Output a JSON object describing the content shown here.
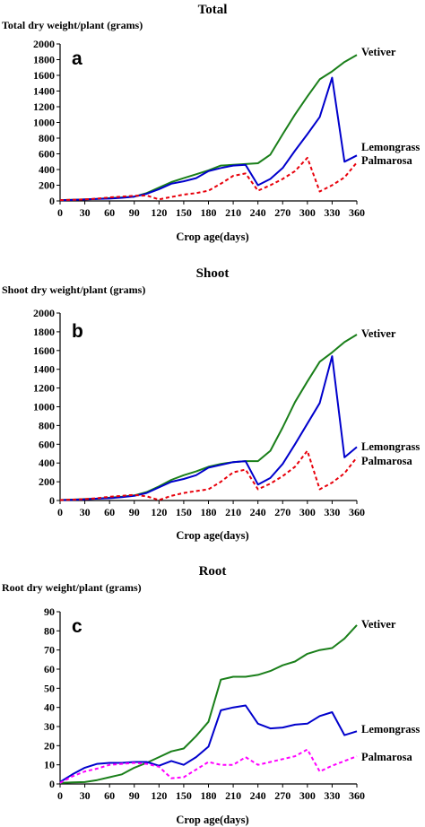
{
  "chart_data": [
    {
      "type": "line",
      "panel_letter": "a",
      "title": "Total",
      "ylabel": "Total dry weight/plant (grams)",
      "xlabel": "Crop age(days)",
      "xlim": [
        0,
        360
      ],
      "ylim": [
        0,
        2000
      ],
      "xticks": [
        0,
        30,
        60,
        90,
        120,
        150,
        180,
        210,
        240,
        270,
        300,
        330,
        360
      ],
      "yticks": [
        0,
        200,
        400,
        600,
        800,
        1000,
        1200,
        1400,
        1600,
        1800,
        2000
      ],
      "grid": false,
      "legend": "inline labels at right end of lines",
      "series": [
        {
          "name": "Vetiver",
          "color": "#1a7f1a",
          "dash": "solid",
          "x": [
            0,
            15,
            30,
            45,
            60,
            75,
            90,
            105,
            120,
            135,
            150,
            165,
            180,
            195,
            210,
            225,
            240,
            255,
            270,
            285,
            300,
            315,
            330,
            345,
            360
          ],
          "y": [
            10,
            15,
            20,
            25,
            35,
            45,
            55,
            100,
            170,
            240,
            290,
            340,
            390,
            450,
            460,
            470,
            480,
            590,
            850,
            1100,
            1330,
            1550,
            1650,
            1770,
            1860
          ]
        },
        {
          "name": "Lemongrass",
          "color": "#0000cc",
          "dash": "solid",
          "x": [
            0,
            15,
            30,
            45,
            60,
            75,
            90,
            105,
            120,
            135,
            150,
            165,
            180,
            195,
            210,
            225,
            240,
            255,
            270,
            285,
            300,
            315,
            330,
            345,
            360
          ],
          "y": [
            8,
            12,
            18,
            25,
            30,
            40,
            55,
            90,
            150,
            220,
            250,
            290,
            380,
            420,
            450,
            460,
            200,
            280,
            420,
            640,
            850,
            1070,
            1570,
            500,
            580
          ]
        },
        {
          "name": "Palmarosa",
          "color": "#e8000b",
          "dash": "dashed",
          "x": [
            0,
            15,
            30,
            45,
            60,
            75,
            90,
            105,
            120,
            135,
            150,
            165,
            180,
            195,
            210,
            225,
            240,
            255,
            270,
            285,
            300,
            315,
            330,
            345,
            360
          ],
          "y": [
            10,
            15,
            20,
            30,
            45,
            55,
            65,
            70,
            20,
            50,
            80,
            100,
            130,
            220,
            320,
            350,
            130,
            200,
            280,
            380,
            550,
            120,
            200,
            300,
            490
          ]
        }
      ]
    },
    {
      "type": "line",
      "panel_letter": "b",
      "title": "Shoot",
      "ylabel": "Shoot dry weight/plant (grams)",
      "xlabel": "Crop age(days)",
      "xlim": [
        0,
        360
      ],
      "ylim": [
        0,
        2000
      ],
      "xticks": [
        0,
        30,
        60,
        90,
        120,
        150,
        180,
        210,
        240,
        270,
        300,
        330,
        360
      ],
      "yticks": [
        0,
        200,
        400,
        600,
        800,
        1000,
        1200,
        1400,
        1600,
        1800,
        2000
      ],
      "grid": false,
      "legend": "inline labels at right end of lines",
      "series": [
        {
          "name": "Vetiver",
          "color": "#1a7f1a",
          "dash": "solid",
          "x": [
            0,
            15,
            30,
            45,
            60,
            75,
            90,
            105,
            120,
            135,
            150,
            165,
            180,
            195,
            210,
            225,
            240,
            255,
            270,
            285,
            300,
            315,
            330,
            345,
            360
          ],
          "y": [
            5,
            10,
            15,
            20,
            30,
            40,
            55,
            90,
            150,
            220,
            270,
            310,
            360,
            390,
            410,
            420,
            420,
            530,
            780,
            1050,
            1270,
            1480,
            1580,
            1690,
            1770
          ]
        },
        {
          "name": "Lemongrass",
          "color": "#0000cc",
          "dash": "solid",
          "x": [
            0,
            15,
            30,
            45,
            60,
            75,
            90,
            105,
            120,
            135,
            150,
            165,
            180,
            195,
            210,
            225,
            240,
            255,
            270,
            285,
            300,
            315,
            330,
            345,
            360
          ],
          "y": [
            5,
            8,
            12,
            20,
            25,
            35,
            50,
            80,
            140,
            200,
            230,
            270,
            350,
            380,
            410,
            420,
            170,
            240,
            390,
            600,
            820,
            1040,
            1540,
            460,
            570
          ]
        },
        {
          "name": "Palmarosa",
          "color": "#e8000b",
          "dash": "dashed",
          "x": [
            0,
            15,
            30,
            45,
            60,
            75,
            90,
            105,
            120,
            135,
            150,
            165,
            180,
            195,
            210,
            225,
            240,
            255,
            270,
            285,
            300,
            315,
            330,
            345,
            360
          ],
          "y": [
            5,
            10,
            15,
            25,
            40,
            50,
            60,
            45,
            5,
            50,
            80,
            100,
            120,
            200,
            300,
            330,
            120,
            180,
            260,
            360,
            530,
            120,
            190,
            290,
            460
          ]
        }
      ]
    },
    {
      "type": "line",
      "panel_letter": "c",
      "title": "Root",
      "ylabel": "Root dry weight/plant (grams)",
      "xlabel": "Crop age(days)",
      "xlim": [
        0,
        360
      ],
      "ylim": [
        0,
        90
      ],
      "xticks": [
        0,
        30,
        60,
        90,
        120,
        150,
        180,
        210,
        240,
        270,
        300,
        330,
        360
      ],
      "yticks": [
        0,
        10,
        20,
        30,
        40,
        50,
        60,
        70,
        80,
        90
      ],
      "grid": false,
      "legend": "inline labels at right end of lines",
      "series": [
        {
          "name": "Vetiver",
          "color": "#1a7f1a",
          "dash": "solid",
          "x": [
            0,
            15,
            30,
            45,
            60,
            75,
            90,
            105,
            120,
            135,
            150,
            165,
            180,
            195,
            210,
            225,
            240,
            255,
            270,
            285,
            300,
            315,
            330,
            345,
            360
          ],
          "y": [
            0.5,
            0.8,
            1,
            2,
            3.5,
            5,
            8.5,
            11,
            14,
            17,
            18.5,
            25,
            32.5,
            54.5,
            56,
            56,
            57,
            59,
            62,
            64,
            68,
            70,
            71,
            76,
            83
          ]
        },
        {
          "name": "Lemongrass",
          "color": "#0000cc",
          "dash": "solid",
          "x": [
            0,
            15,
            30,
            45,
            60,
            75,
            90,
            105,
            120,
            135,
            150,
            165,
            180,
            195,
            210,
            225,
            240,
            255,
            270,
            285,
            300,
            315,
            330,
            345,
            360
          ],
          "y": [
            1,
            5,
            8.5,
            10.5,
            11,
            11,
            11.5,
            11.5,
            9.5,
            12,
            10,
            14,
            19.5,
            38.5,
            40,
            41,
            31.5,
            29,
            29.5,
            31,
            31.5,
            35.5,
            37.5,
            25.5,
            27.5
          ]
        },
        {
          "name": "Palmarosa",
          "color": "#ff00ff",
          "dash": "dashed",
          "x": [
            0,
            15,
            30,
            45,
            60,
            75,
            90,
            105,
            120,
            135,
            150,
            165,
            180,
            195,
            210,
            225,
            240,
            255,
            270,
            285,
            300,
            315,
            330,
            345,
            360
          ],
          "y": [
            0.5,
            4,
            6.5,
            8,
            10,
            10.5,
            11,
            10.5,
            9,
            3,
            3.5,
            7.5,
            11.5,
            10,
            10,
            14,
            10,
            11.5,
            13,
            14.5,
            18,
            6.5,
            9.5,
            12,
            14.5
          ]
        }
      ]
    }
  ]
}
